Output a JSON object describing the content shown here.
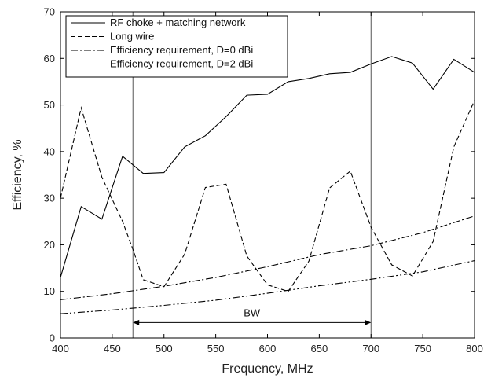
{
  "chart_data": {
    "type": "line",
    "xlabel": "Frequency, MHz",
    "ylabel": "Efficiency, %",
    "xlim": [
      400,
      800
    ],
    "ylim": [
      0,
      70
    ],
    "xticks": [
      "400",
      "450",
      "500",
      "550",
      "600",
      "650",
      "700",
      "750",
      "800"
    ],
    "yticks": [
      "0",
      "10",
      "20",
      "30",
      "40",
      "50",
      "60",
      "70"
    ],
    "grid": false,
    "legend_position": "top-left",
    "series": [
      {
        "name": "RF choke + matching network",
        "dash": "solid",
        "x": [
          400,
          420,
          440,
          460,
          480,
          500,
          520,
          540,
          560,
          580,
          600,
          620,
          640,
          660,
          680,
          700,
          720,
          740,
          760,
          780,
          800
        ],
        "y": [
          13,
          28.2,
          25.5,
          39,
          35.3,
          35.5,
          41,
          43.4,
          47.5,
          52.1,
          52.3,
          55,
          55.7,
          56.7,
          57,
          58.8,
          60.4,
          59,
          53.4,
          59.8,
          57
        ]
      },
      {
        "name": "Long wire",
        "dash": "dashed",
        "x": [
          400,
          420,
          440,
          460,
          470,
          480,
          500,
          520,
          540,
          560,
          580,
          600,
          620,
          640,
          660,
          680,
          700,
          720,
          740,
          760,
          780,
          800
        ],
        "y": [
          30,
          49.4,
          34.5,
          25,
          19,
          12.5,
          11,
          18,
          32.3,
          33,
          17.6,
          11.4,
          10,
          16.5,
          32.2,
          35.8,
          23.8,
          15.7,
          13.3,
          20.7,
          41,
          51
        ]
      },
      {
        "name": "Efficiency requirement, D=0 dBi",
        "dash": "dashdot",
        "x": [
          400,
          450,
          500,
          550,
          600,
          650,
          700,
          750,
          800
        ],
        "y": [
          8.2,
          9.5,
          11.1,
          13,
          15.3,
          17.9,
          19.8,
          22.6,
          26.2
        ]
      },
      {
        "name": "Efficiency requirement, D=2 dBi",
        "dash": "dashdotdot",
        "x": [
          400,
          450,
          500,
          550,
          600,
          650,
          700,
          750,
          800
        ],
        "y": [
          5.2,
          6,
          7,
          8.1,
          9.6,
          11.2,
          12.6,
          14.2,
          16.6
        ]
      }
    ],
    "annotations": {
      "bw_label": "BW",
      "bw_range": [
        470,
        700
      ],
      "bw_y": 3.3,
      "vlines": [
        470,
        700
      ]
    }
  }
}
